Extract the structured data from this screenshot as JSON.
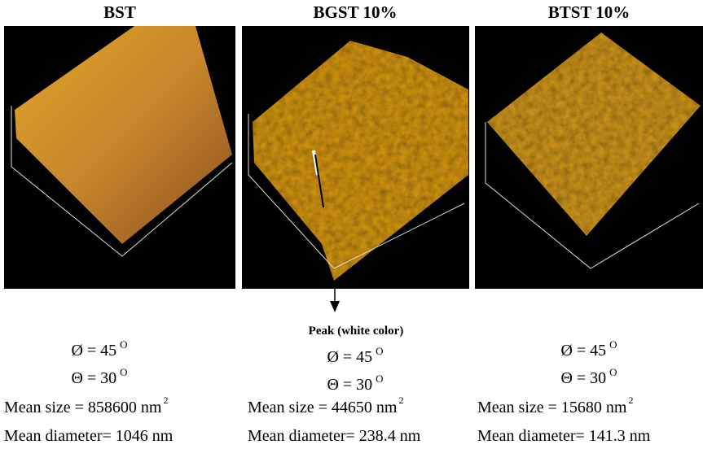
{
  "panels": [
    {
      "title": "BST",
      "phi": "Ø = 45",
      "phi_unit": "O",
      "theta": "Θ = 30",
      "theta_unit": "O",
      "mean_size": "Mean size = 858600 nm",
      "mean_size_exp": "2",
      "mean_diameter": "Mean diameter= 1046 nm"
    },
    {
      "title": "BGST 10%",
      "phi": "Ø = 45",
      "phi_unit": "O",
      "theta": "Θ = 30",
      "theta_unit": "O",
      "mean_size": "Mean size = 44650 nm",
      "mean_size_exp": "2",
      "mean_diameter": "Mean diameter= 238.4 nm"
    },
    {
      "title": "BTST 10%",
      "phi": "Ø = 45",
      "phi_unit": "O",
      "theta": "Θ = 30",
      "theta_unit": "O",
      "mean_size": "Mean size = 15680 nm",
      "mean_size_exp": "2",
      "mean_diameter": "Mean diameter= 141.3 nm"
    }
  ],
  "annotation": "Peak (white color)"
}
